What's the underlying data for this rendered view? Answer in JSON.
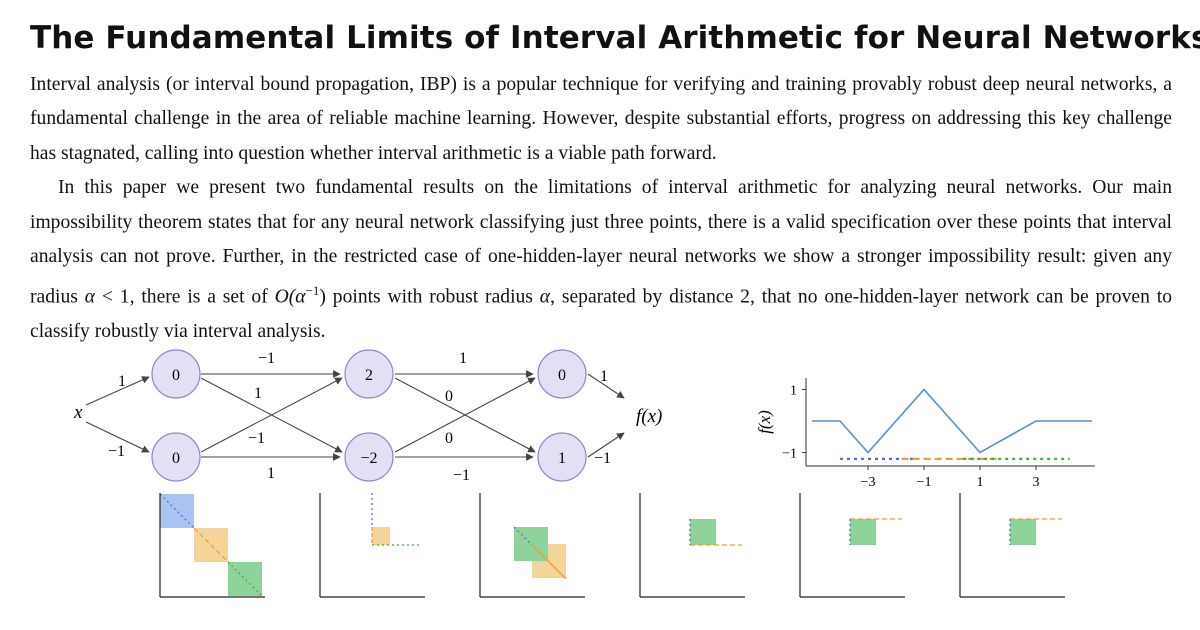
{
  "title": "The Fundamental Limits of Interval Arithmetic for Neural Networks",
  "abstract": {
    "p1": "Interval analysis (or interval bound propagation, IBP) is a popular technique for verifying and training provably robust deep neural networks, a fundamental challenge in the area of reliable machine learning. However, despite substantial efforts, progress on addressing this key challenge has stagnated, calling into question whether interval arithmetic is a viable path forward.",
    "p2_a": "In this paper we present two fundamental results on the limitations of interval arithmetic for analyzing neural networks. Our main impossibility theorem states that for any neural network classifying just three points, there is a valid specification over these points that interval analysis can not prove. Further, in the restricted case of one-hidden-layer neural networks we show a stronger impossibility result: given any radius ",
    "p2_alpha1": "α",
    "p2_b": " < 1, there is a set of ",
    "p2_big_o": "O(α",
    "p2_exp": "−1",
    "p2_c": ") points with robust radius ",
    "p2_alpha2": "α",
    "p2_d": ", separated by distance 2, that no one-hidden-layer network can be proven to classify robustly via interval analysis."
  },
  "network": {
    "input_label": "x",
    "output_label": "f(x)",
    "input_weights": [
      "1",
      "−1"
    ],
    "layers": [
      {
        "nodes": [
          "0",
          "0"
        ]
      },
      {
        "nodes": [
          "2",
          "−2"
        ]
      },
      {
        "nodes": [
          "0",
          "1"
        ]
      }
    ],
    "edges_l1_l2": {
      "top_straight": "−1",
      "top_cross": "1",
      "bottom_cross": "−1",
      "bottom_straight": "1"
    },
    "edges_l2_l3": {
      "top_straight": "1",
      "top_cross": "0",
      "bottom_cross": "0",
      "bottom_straight": "−1"
    },
    "output_weights": [
      "1",
      "−1"
    ]
  },
  "function_plot": {
    "ylabel": "f(x)",
    "y_ticks": [
      "1",
      "−1"
    ],
    "x_ticks": [
      "−3",
      "−1",
      "1",
      "3"
    ],
    "colors": {
      "line": "#5b8fc7",
      "blue": "#4c72d8",
      "orange": "#f0a030",
      "green": "#3fae3f"
    }
  },
  "chart_data": {
    "type": "line",
    "xlabel": "",
    "ylabel": "f(x)",
    "x": [
      -5,
      -4,
      -3,
      -1,
      1,
      3,
      4,
      5
    ],
    "series": [
      {
        "values": [
          0,
          0,
          -1,
          1,
          -1,
          0,
          0,
          0
        ]
      }
    ],
    "xlim": [
      -5,
      5
    ],
    "ylim": [
      -1.3,
      1.3
    ],
    "x_ticks": [
      -3,
      -1,
      1,
      3
    ],
    "y_ticks": [
      1,
      -1
    ]
  },
  "mini_panels": {
    "count": 6,
    "colors": {
      "blue_fill": "#a9c4f0",
      "orange_fill": "#f5d49a",
      "green_fill": "#8ed39a"
    }
  }
}
